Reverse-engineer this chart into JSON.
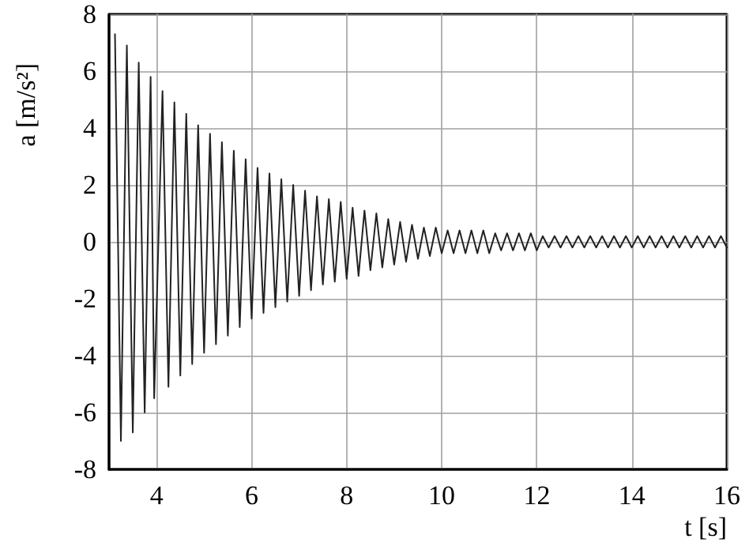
{
  "chart_data": {
    "type": "line",
    "xlabel": "t [s]",
    "ylabel": "a [m/s²]",
    "xlim": [
      3,
      16
    ],
    "xticks": [
      4,
      6,
      8,
      10,
      12,
      14,
      16
    ],
    "ylim": [
      -8,
      8
    ],
    "yticks": [
      -8,
      -6,
      -4,
      -2,
      0,
      2,
      4,
      6,
      8
    ],
    "grid": true,
    "marker": "none",
    "series": [
      {
        "color": "#222222",
        "x": [
          3.125,
          3.25,
          3.375,
          3.5,
          3.625,
          3.75,
          3.875,
          3.95,
          4.125,
          4.25,
          4.375,
          4.5,
          4.625,
          4.75,
          4.875,
          5,
          5.125,
          5.25,
          5.375,
          5.5,
          5.625,
          5.75,
          5.875,
          6,
          6.125,
          6.25,
          6.375,
          6.5,
          6.625,
          6.75,
          6.875,
          7,
          7.125,
          7.25,
          7.375,
          7.5,
          7.625,
          7.75,
          7.875,
          8,
          8.125,
          8.25,
          8.375,
          8.5,
          8.625,
          8.75,
          8.875,
          9,
          9.125,
          9.25,
          9.375,
          9.5,
          9.625,
          9.75,
          9.875,
          10,
          10.125,
          10.25,
          10.375,
          10.5,
          10.625,
          10.75,
          10.875,
          11,
          11.125,
          11.25,
          11.375,
          11.5,
          11.625,
          11.75,
          11.875,
          12,
          12.125,
          12.25,
          12.375,
          12.5,
          12.625,
          12.75,
          12.875,
          13,
          13.125,
          13.25,
          13.375,
          13.5,
          13.625,
          13.75,
          13.875,
          14,
          14.125,
          14.25,
          14.375,
          14.5,
          14.625,
          14.75,
          14.875,
          15,
          15.125,
          15.25,
          15.375,
          15.5,
          15.625,
          15.75,
          15.875,
          16
        ],
        "values": [
          7.3,
          -7.0,
          6.9,
          -6.7,
          6.3,
          -6.0,
          5.8,
          -5.5,
          5.3,
          -5.1,
          4.9,
          -4.7,
          4.5,
          -4.3,
          4.1,
          -3.9,
          3.8,
          -3.6,
          3.5,
          -3.3,
          3.2,
          -3.0,
          2.9,
          -2.7,
          2.6,
          -2.5,
          2.4,
          -2.3,
          2.2,
          -2.1,
          2.0,
          -1.9,
          1.8,
          -1.7,
          1.6,
          -1.5,
          1.5,
          -1.4,
          1.4,
          -1.3,
          1.2,
          -1.2,
          1.1,
          -1.0,
          1.0,
          -0.9,
          0.8,
          -0.8,
          0.7,
          -0.7,
          0.6,
          -0.6,
          0.5,
          -0.5,
          0.5,
          -0.4,
          0.4,
          -0.4,
          0.4,
          -0.4,
          0.4,
          -0.4,
          0.4,
          -0.4,
          0.3,
          -0.3,
          0.3,
          -0.3,
          0.3,
          -0.3,
          0.3,
          -0.3,
          0.2,
          -0.2,
          0.2,
          -0.2,
          0.2,
          -0.2,
          0.2,
          -0.2,
          0.2,
          -0.2,
          0.2,
          -0.2,
          0.2,
          -0.2,
          0.2,
          -0.2,
          0.2,
          -0.2,
          0.2,
          -0.2,
          0.2,
          -0.2,
          0.2,
          -0.2,
          0.2,
          -0.2,
          0.2,
          -0.2,
          0.2,
          -0.2,
          0.2,
          -0.2
        ]
      }
    ]
  }
}
